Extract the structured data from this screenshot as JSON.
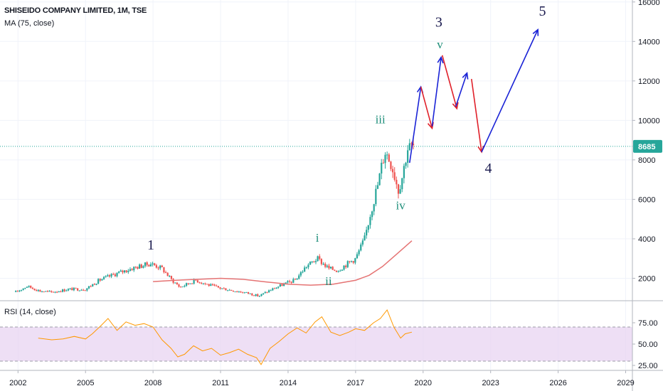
{
  "header": {
    "symbol_line": "SHISEIDO COMPANY LIMITED, 1M, TSE",
    "ma_line": "MA (75, close)"
  },
  "rsi_panel": {
    "label": "RSI (14, close)"
  },
  "colors": {
    "up": "#26a69a",
    "down": "#ef5350",
    "ma": "#e57373",
    "rsi": "#ff9800",
    "rsi_band": "#e8d4f2",
    "arrow_up": "#1a23d6",
    "arrow_down": "#e0202a",
    "price_line": "#26a69a",
    "price_tag": "#26a69a"
  },
  "chart_data": [
    {
      "type": "candlestick",
      "title": "SHISEIDO COMPANY LIMITED, 1M, TSE",
      "x_ticks": [
        "2002",
        "2005",
        "2008",
        "2011",
        "2014",
        "2017",
        "2020",
        "2023",
        "2026",
        "2029"
      ],
      "x_range": [
        2001.2,
        2029.3
      ],
      "y_ticks": [
        2000,
        4000,
        6000,
        8000,
        10000,
        12000,
        14000,
        16000
      ],
      "y_range": [
        900,
        16100
      ],
      "last_price": "8685",
      "price_path": [
        [
          2001.9,
          1300
        ],
        [
          2002.4,
          1600
        ],
        [
          2003.0,
          1350
        ],
        [
          2003.5,
          1300
        ],
        [
          2004.3,
          1450
        ],
        [
          2005.0,
          1450
        ],
        [
          2005.6,
          1900
        ],
        [
          2006.4,
          2250
        ],
        [
          2007.2,
          2550
        ],
        [
          2007.9,
          2750
        ],
        [
          2008.4,
          2500
        ],
        [
          2008.8,
          1950
        ],
        [
          2009.2,
          1550
        ],
        [
          2009.9,
          1900
        ],
        [
          2010.5,
          1650
        ],
        [
          2011.0,
          1500
        ],
        [
          2011.7,
          1350
        ],
        [
          2012.2,
          1250
        ],
        [
          2012.7,
          1100
        ],
        [
          2013.2,
          1400
        ],
        [
          2013.8,
          1700
        ],
        [
          2014.3,
          1900
        ],
        [
          2014.8,
          2600
        ],
        [
          2015.3,
          3000
        ],
        [
          2015.8,
          2500
        ],
        [
          2016.2,
          2400
        ],
        [
          2016.7,
          2800
        ],
        [
          2017.0,
          3000
        ],
        [
          2017.4,
          4000
        ],
        [
          2017.7,
          5500
        ],
        [
          2018.0,
          6800
        ],
        [
          2018.3,
          8500
        ],
        [
          2018.6,
          7800
        ],
        [
          2018.9,
          6500
        ],
        [
          2019.1,
          7300
        ],
        [
          2019.3,
          8600
        ],
        [
          2019.6,
          8685
        ]
      ],
      "moving_average": {
        "name": "MA (75, close)",
        "points": [
          [
            2008.0,
            1830
          ],
          [
            2009.0,
            1900
          ],
          [
            2010.0,
            1950
          ],
          [
            2011.0,
            2000
          ],
          [
            2012.0,
            1950
          ],
          [
            2013.0,
            1820
          ],
          [
            2014.0,
            1700
          ],
          [
            2015.0,
            1650
          ],
          [
            2016.0,
            1700
          ],
          [
            2017.0,
            1900
          ],
          [
            2017.6,
            2150
          ],
          [
            2018.2,
            2600
          ],
          [
            2018.8,
            3200
          ],
          [
            2019.5,
            3900
          ]
        ]
      },
      "projection_arrows": [
        {
          "from": [
            2019.4,
            7850
          ],
          "to": [
            2019.9,
            11700
          ],
          "dir": "up"
        },
        {
          "from": [
            2019.9,
            11700
          ],
          "to": [
            2020.4,
            9600
          ],
          "dir": "down"
        },
        {
          "from": [
            2020.4,
            9700
          ],
          "to": [
            2020.8,
            13200
          ],
          "dir": "up"
        },
        {
          "from": [
            2020.85,
            13300
          ],
          "to": [
            2021.5,
            10600
          ],
          "dir": "down"
        },
        {
          "from": [
            2021.45,
            10700
          ],
          "to": [
            2021.95,
            12400
          ],
          "dir": "up"
        },
        {
          "from": [
            2022.15,
            12100
          ],
          "to": [
            2022.6,
            8400
          ],
          "dir": "down"
        },
        {
          "from": [
            2022.6,
            8400
          ],
          "to": [
            2025.1,
            14600
          ],
          "dir": "up"
        }
      ],
      "wave_labels": [
        {
          "text": "1",
          "x": 2007.9,
          "y": 3450,
          "style": "major"
        },
        {
          "text": "3",
          "x": 2020.7,
          "y": 14750,
          "style": "major"
        },
        {
          "text": "4",
          "x": 2022.9,
          "y": 7350,
          "style": "major"
        },
        {
          "text": "5",
          "x": 2025.3,
          "y": 15300,
          "style": "major"
        },
        {
          "text": "i",
          "x": 2015.3,
          "y": 3850,
          "style": "minor"
        },
        {
          "text": "ii",
          "x": 2015.8,
          "y": 1650,
          "style": "minor"
        },
        {
          "text": "iii",
          "x": 2018.1,
          "y": 9850,
          "style": "minor"
        },
        {
          "text": "iv",
          "x": 2019.0,
          "y": 5500,
          "style": "minor"
        },
        {
          "text": "v",
          "x": 2020.75,
          "y": 13650,
          "style": "minor"
        }
      ]
    },
    {
      "type": "line",
      "title": "RSI (14, close)",
      "y_ticks": [
        "25.00",
        "50.00",
        "75.00"
      ],
      "y_range": [
        20,
        100
      ],
      "band": [
        30,
        70
      ],
      "x": [
        2002.9,
        2003.5,
        2004.0,
        2004.5,
        2005.0,
        2005.3,
        2005.7,
        2006.0,
        2006.4,
        2006.8,
        2007.2,
        2007.6,
        2008.0,
        2008.4,
        2008.8,
        2009.1,
        2009.4,
        2009.8,
        2010.2,
        2010.6,
        2011.0,
        2011.4,
        2011.8,
        2012.2,
        2012.6,
        2012.8,
        2013.2,
        2013.6,
        2014.0,
        2014.4,
        2014.8,
        2015.2,
        2015.5,
        2015.9,
        2016.3,
        2016.7,
        2017.0,
        2017.4,
        2017.8,
        2018.1,
        2018.4,
        2018.7,
        2019.0,
        2019.2,
        2019.5
      ],
      "values": [
        57,
        55,
        56,
        59,
        56,
        62,
        72,
        80,
        66,
        76,
        72,
        74,
        70,
        55,
        45,
        35,
        38,
        48,
        42,
        45,
        37,
        40,
        44,
        38,
        34,
        26,
        45,
        53,
        62,
        69,
        63,
        76,
        82,
        64,
        60,
        64,
        68,
        66,
        75,
        80,
        90,
        70,
        57,
        62,
        64
      ]
    }
  ]
}
